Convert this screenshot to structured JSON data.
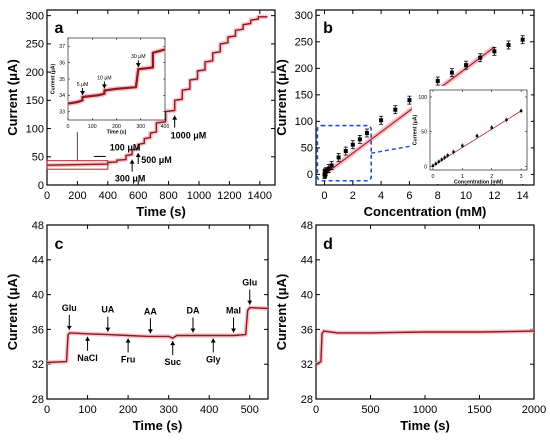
{
  "panel_labels": [
    "a",
    "b",
    "c",
    "d"
  ],
  "colors": {
    "trace": "#8b1a1a",
    "band": "#f4a9b9",
    "fit": "#b22222",
    "inset_box": "#b22222",
    "dashed_box": "#1f4fd1",
    "axis": "#000000"
  },
  "chart_data": [
    {
      "panel": "a",
      "type": "line",
      "xlabel": "Time (s)",
      "ylabel": "Current (μA)",
      "xlim": [
        0,
        1500
      ],
      "ylim": [
        0,
        310
      ],
      "xticks": [
        0,
        200,
        400,
        600,
        800,
        1000,
        1200,
        1400
      ],
      "yticks": [
        0,
        50,
        100,
        150,
        200,
        250,
        300
      ],
      "series": [
        {
          "x": [
            0,
            400,
            400,
            460,
            460,
            520,
            520,
            560,
            560,
            600,
            600,
            640,
            640,
            680,
            680,
            720,
            720,
            780,
            780,
            840,
            840,
            890,
            890,
            940,
            940,
            990,
            990,
            1040,
            1040,
            1090,
            1090,
            1140,
            1140,
            1190,
            1190,
            1240,
            1240,
            1290,
            1290,
            1340,
            1340,
            1390,
            1390,
            1450
          ],
          "y": [
            35,
            37,
            40,
            41,
            44,
            45,
            52,
            54,
            62,
            64,
            72,
            74,
            82,
            84,
            92,
            94,
            110,
            112,
            130,
            132,
            150,
            152,
            168,
            170,
            186,
            188,
            202,
            204,
            218,
            220,
            234,
            236,
            250,
            252,
            262,
            264,
            274,
            276,
            284,
            286,
            292,
            294,
            298,
            298
          ]
        }
      ],
      "annotations": [
        {
          "text": "100 μM",
          "x": 400,
          "y": 40
        },
        {
          "text": "300 μM",
          "x": 560,
          "y": 52
        },
        {
          "text": "500 μM",
          "x": 600,
          "y": 62
        },
        {
          "text": "1000 μM",
          "x": 840,
          "y": 130
        }
      ],
      "inset": {
        "xlabel": "Time (s)",
        "ylabel": "Current (μA)",
        "xlim": [
          0,
          400
        ],
        "ylim": [
          32.5,
          37.5
        ],
        "xticks": [
          0,
          100,
          200,
          300,
          400
        ],
        "yticks": [
          33,
          34,
          35,
          36,
          37
        ],
        "series": [
          {
            "x": [
              0,
              40,
              60,
              60,
              120,
              150,
              150,
              200,
              280,
              290,
              290,
              350,
              350,
              400
            ],
            "y": [
              33.5,
              33.6,
              33.7,
              33.9,
              34.0,
              34.1,
              34.3,
              34.4,
              34.5,
              35.6,
              35.6,
              35.7,
              36.6,
              36.8
            ]
          }
        ],
        "annotations": [
          {
            "text": "5 μM",
            "x": 60,
            "y": 33.9
          },
          {
            "text": "10 μM",
            "x": 150,
            "y": 34.3
          },
          {
            "text": "30 μM",
            "x": 290,
            "y": 35.6
          }
        ]
      }
    },
    {
      "panel": "b",
      "type": "scatter",
      "xlabel": "Concentration (mM)",
      "ylabel": "Current (μA)",
      "xlim": [
        -0.6,
        14.8
      ],
      "ylim": [
        -20,
        310
      ],
      "xticks": [
        0,
        2,
        4,
        6,
        8,
        10,
        12,
        14
      ],
      "yticks": [
        0,
        50,
        100,
        150,
        200,
        250,
        300
      ],
      "series": [
        {
          "x": [
            0,
            0.005,
            0.01,
            0.03,
            0.05,
            0.1,
            0.3,
            0.5,
            1.0,
            1.5,
            2.0,
            2.5,
            3.0,
            4.0,
            5.0,
            6.0,
            7.0,
            8.0,
            9.0,
            10.0,
            11.0,
            12.0,
            13.0,
            14.0
          ],
          "y": [
            0,
            0.2,
            0.5,
            1.5,
            3,
            5,
            11,
            17,
            32,
            44,
            56,
            66,
            78,
            102,
            122,
            140,
            158,
            176,
            192,
            206,
            220,
            232,
            244,
            254
          ]
        }
      ],
      "fit_line": {
        "x": [
          0,
          12
        ],
        "y": [
          0,
          240
        ]
      },
      "inset": {
        "xlabel": "Concentration (mM)",
        "ylabel": "Current (μA)",
        "xlim": [
          -0.1,
          3.2
        ],
        "ylim": [
          -5,
          110
        ],
        "xticks": [
          0,
          1,
          2,
          3
        ],
        "yticks": [
          0,
          50,
          100
        ],
        "series": [
          {
            "x": [
              0,
              0.1,
              0.2,
              0.3,
              0.4,
              0.5,
              0.7,
              1.0,
              1.5,
              2.0,
              2.5,
              3.0
            ],
            "y": [
              1,
              4,
              7,
              10,
              13,
              16,
              21,
              30,
              44,
              56,
              67,
              80
            ]
          }
        ]
      }
    },
    {
      "panel": "c",
      "type": "line",
      "xlabel": "Time (s)",
      "ylabel": "Current (μA)",
      "xlim": [
        0,
        545
      ],
      "ylim": [
        28,
        48
      ],
      "xticks": [
        0,
        100,
        200,
        300,
        400,
        500
      ],
      "yticks": [
        28,
        32,
        36,
        40,
        44,
        48
      ],
      "series": [
        {
          "x": [
            0,
            48,
            52,
            56,
            100,
            150,
            200,
            250,
            300,
            310,
            320,
            360,
            410,
            460,
            490,
            495,
            500,
            545
          ],
          "y": [
            32.2,
            32.3,
            35.4,
            35.6,
            35.5,
            35.4,
            35.3,
            35.2,
            35.2,
            35.0,
            35.3,
            35.3,
            35.3,
            35.3,
            35.4,
            38.2,
            38.5,
            38.4
          ]
        }
      ],
      "annotations": [
        {
          "text": "Glu",
          "x": 55,
          "pos": "above",
          "y": 35.6
        },
        {
          "text": "NaCl",
          "x": 100,
          "pos": "below",
          "y": 35.5
        },
        {
          "text": "UA",
          "x": 150,
          "pos": "above",
          "y": 35.4
        },
        {
          "text": "Fru",
          "x": 200,
          "pos": "below",
          "y": 35.3
        },
        {
          "text": "AA",
          "x": 255,
          "pos": "above",
          "y": 35.2
        },
        {
          "text": "Suc",
          "x": 310,
          "pos": "below",
          "y": 35.0
        },
        {
          "text": "DA",
          "x": 360,
          "pos": "above",
          "y": 35.3
        },
        {
          "text": "Gly",
          "x": 410,
          "pos": "below",
          "y": 35.3
        },
        {
          "text": "Mal",
          "x": 460,
          "pos": "above",
          "y": 35.3
        },
        {
          "text": "Glu",
          "x": 500,
          "pos": "above",
          "y": 38.5
        }
      ]
    },
    {
      "panel": "d",
      "type": "line",
      "xlabel": "Time (s)",
      "ylabel": "Current (μA)",
      "xlim": [
        0,
        2000
      ],
      "ylim": [
        28,
        48
      ],
      "xticks": [
        0,
        500,
        1000,
        1500,
        2000
      ],
      "yticks": [
        28,
        32,
        36,
        40,
        44,
        48
      ],
      "series": [
        {
          "x": [
            0,
            45,
            55,
            70,
            200,
            500,
            1000,
            1500,
            2000
          ],
          "y": [
            32.0,
            32.3,
            35.5,
            35.8,
            35.6,
            35.6,
            35.7,
            35.7,
            35.8
          ]
        }
      ]
    }
  ]
}
